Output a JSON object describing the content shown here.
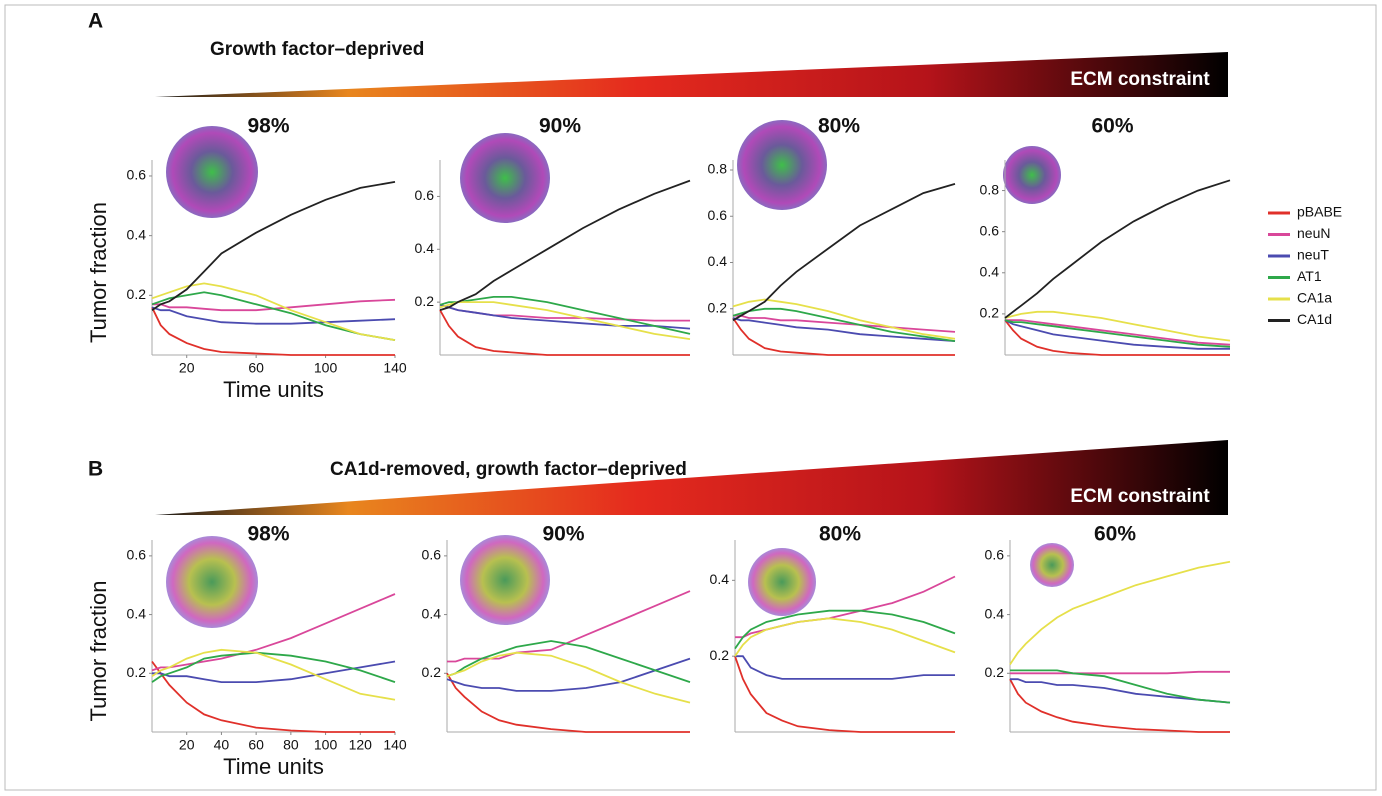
{
  "panels": [
    {
      "label": "A",
      "title": "Growth factor–deprived",
      "gradient_label": "ECM constraint"
    },
    {
      "label": "B",
      "title": "CA1d-removed, growth factor–deprived",
      "gradient_label": "ECM constraint"
    }
  ],
  "chart_data": [
    {
      "type": "line",
      "title": "98%",
      "ylabel": "Tumor fraction",
      "xlabel": "Time units",
      "x": [
        0,
        5,
        10,
        20,
        30,
        40,
        60,
        80,
        100,
        120,
        140
      ],
      "xlim": [
        0,
        140
      ],
      "xticks": [
        20,
        60,
        100,
        140
      ],
      "ylim": [
        0,
        0.62
      ],
      "yticks": [
        0.2,
        0.4,
        0.6
      ],
      "series": [
        {
          "color": "#e0302a",
          "values": [
            0.16,
            0.1,
            0.07,
            0.04,
            0.02,
            0.01,
            0.005,
            0,
            0,
            0,
            0
          ]
        },
        {
          "color": "#d9479a",
          "values": [
            0.17,
            0.17,
            0.16,
            0.16,
            0.155,
            0.15,
            0.15,
            0.16,
            0.17,
            0.18,
            0.185
          ]
        },
        {
          "color": "#4b4bb0",
          "values": [
            0.16,
            0.15,
            0.15,
            0.13,
            0.12,
            0.11,
            0.105,
            0.105,
            0.11,
            0.115,
            0.12
          ]
        },
        {
          "color": "#2ea84a",
          "values": [
            0.17,
            0.18,
            0.19,
            0.2,
            0.21,
            0.2,
            0.17,
            0.14,
            0.1,
            0.07,
            0.05
          ]
        },
        {
          "color": "#e6e04a",
          "values": [
            0.19,
            0.2,
            0.21,
            0.23,
            0.24,
            0.23,
            0.2,
            0.15,
            0.11,
            0.07,
            0.05
          ]
        },
        {
          "color": "#222222",
          "values": [
            0.15,
            0.17,
            0.18,
            0.22,
            0.28,
            0.34,
            0.41,
            0.47,
            0.52,
            0.56,
            0.58
          ]
        }
      ]
    },
    {
      "type": "line",
      "title": "90%",
      "x": [
        0,
        5,
        10,
        20,
        30,
        40,
        60,
        80,
        100,
        120,
        140
      ],
      "xlim": [
        0,
        140
      ],
      "ylim": [
        0,
        0.7
      ],
      "yticks": [
        0.2,
        0.4,
        0.6
      ],
      "series": [
        {
          "color": "#e0302a",
          "values": [
            0.17,
            0.11,
            0.07,
            0.03,
            0.015,
            0.01,
            0,
            0,
            0,
            0,
            0
          ]
        },
        {
          "color": "#d9479a",
          "values": [
            0.19,
            0.18,
            0.17,
            0.16,
            0.15,
            0.15,
            0.14,
            0.14,
            0.135,
            0.13,
            0.13
          ]
        },
        {
          "color": "#4b4bb0",
          "values": [
            0.19,
            0.18,
            0.17,
            0.16,
            0.15,
            0.14,
            0.13,
            0.12,
            0.11,
            0.11,
            0.1
          ]
        },
        {
          "color": "#2ea84a",
          "values": [
            0.19,
            0.2,
            0.2,
            0.21,
            0.22,
            0.22,
            0.2,
            0.17,
            0.14,
            0.11,
            0.08
          ]
        },
        {
          "color": "#e6e04a",
          "values": [
            0.18,
            0.19,
            0.2,
            0.2,
            0.2,
            0.19,
            0.17,
            0.14,
            0.11,
            0.08,
            0.06
          ]
        },
        {
          "color": "#222222",
          "values": [
            0.17,
            0.18,
            0.2,
            0.23,
            0.28,
            0.32,
            0.4,
            0.48,
            0.55,
            0.61,
            0.66
          ]
        }
      ]
    },
    {
      "type": "line",
      "title": "80%",
      "x": [
        0,
        5,
        10,
        20,
        30,
        40,
        60,
        80,
        100,
        120,
        140
      ],
      "xlim": [
        0,
        140
      ],
      "ylim": [
        0,
        0.8
      ],
      "yticks": [
        0.2,
        0.4,
        0.6,
        0.8
      ],
      "series": [
        {
          "color": "#e0302a",
          "values": [
            0.16,
            0.11,
            0.07,
            0.03,
            0.015,
            0.01,
            0,
            0,
            0,
            0,
            0
          ]
        },
        {
          "color": "#d9479a",
          "values": [
            0.17,
            0.17,
            0.16,
            0.16,
            0.15,
            0.15,
            0.14,
            0.13,
            0.12,
            0.11,
            0.1
          ]
        },
        {
          "color": "#4b4bb0",
          "values": [
            0.16,
            0.15,
            0.15,
            0.14,
            0.13,
            0.12,
            0.11,
            0.09,
            0.08,
            0.07,
            0.06
          ]
        },
        {
          "color": "#2ea84a",
          "values": [
            0.17,
            0.18,
            0.19,
            0.2,
            0.2,
            0.19,
            0.16,
            0.13,
            0.1,
            0.08,
            0.06
          ]
        },
        {
          "color": "#e6e04a",
          "values": [
            0.21,
            0.22,
            0.23,
            0.24,
            0.23,
            0.22,
            0.19,
            0.15,
            0.12,
            0.09,
            0.07
          ]
        },
        {
          "color": "#222222",
          "values": [
            0.15,
            0.17,
            0.19,
            0.23,
            0.3,
            0.36,
            0.46,
            0.56,
            0.63,
            0.7,
            0.74
          ]
        }
      ]
    },
    {
      "type": "line",
      "title": "60%",
      "legend": "right",
      "x": [
        0,
        5,
        10,
        20,
        30,
        40,
        60,
        80,
        100,
        120,
        140
      ],
      "xlim": [
        0,
        140
      ],
      "ylim": [
        0,
        0.9
      ],
      "yticks": [
        0.2,
        0.4,
        0.6,
        0.8
      ],
      "series": [
        {
          "name": "pBABE",
          "color": "#e0302a",
          "values": [
            0.17,
            0.12,
            0.08,
            0.04,
            0.02,
            0.01,
            0,
            0,
            0,
            0,
            0
          ]
        },
        {
          "name": "neuN",
          "color": "#d9479a",
          "values": [
            0.17,
            0.17,
            0.17,
            0.16,
            0.15,
            0.14,
            0.12,
            0.1,
            0.08,
            0.06,
            0.05
          ]
        },
        {
          "name": "neuT",
          "color": "#4b4bb0",
          "values": [
            0.17,
            0.15,
            0.14,
            0.12,
            0.1,
            0.09,
            0.07,
            0.05,
            0.04,
            0.03,
            0.03
          ]
        },
        {
          "name": "AT1",
          "color": "#2ea84a",
          "values": [
            0.17,
            0.16,
            0.16,
            0.15,
            0.14,
            0.13,
            0.11,
            0.09,
            0.07,
            0.05,
            0.04
          ]
        },
        {
          "name": "CA1a",
          "color": "#e6e04a",
          "values": [
            0.18,
            0.19,
            0.2,
            0.21,
            0.21,
            0.2,
            0.18,
            0.15,
            0.12,
            0.09,
            0.07
          ]
        },
        {
          "name": "CA1d",
          "color": "#222222",
          "values": [
            0.18,
            0.21,
            0.24,
            0.3,
            0.37,
            0.43,
            0.55,
            0.65,
            0.73,
            0.8,
            0.85
          ]
        }
      ]
    },
    {
      "type": "line",
      "title": "98%",
      "ylabel": "Tumor fraction",
      "xlabel": "Time units",
      "x": [
        0,
        5,
        10,
        20,
        30,
        40,
        60,
        80,
        100,
        120,
        140
      ],
      "xlim": [
        0,
        140
      ],
      "xticks": [
        20,
        40,
        60,
        80,
        100,
        120,
        140
      ],
      "ylim": [
        0,
        0.62
      ],
      "yticks": [
        0.2,
        0.4,
        0.6
      ],
      "series": [
        {
          "color": "#e0302a",
          "values": [
            0.24,
            0.2,
            0.16,
            0.1,
            0.06,
            0.04,
            0.015,
            0.005,
            0,
            0,
            0
          ]
        },
        {
          "color": "#d9479a",
          "values": [
            0.21,
            0.22,
            0.22,
            0.23,
            0.24,
            0.25,
            0.28,
            0.32,
            0.37,
            0.42,
            0.47
          ]
        },
        {
          "color": "#4b4bb0",
          "values": [
            0.2,
            0.2,
            0.19,
            0.19,
            0.18,
            0.17,
            0.17,
            0.18,
            0.2,
            0.22,
            0.24
          ]
        },
        {
          "color": "#2ea84a",
          "values": [
            0.17,
            0.19,
            0.2,
            0.22,
            0.25,
            0.26,
            0.27,
            0.26,
            0.24,
            0.21,
            0.17
          ]
        },
        {
          "color": "#e6e04a",
          "values": [
            0.19,
            0.21,
            0.22,
            0.25,
            0.27,
            0.28,
            0.27,
            0.23,
            0.18,
            0.13,
            0.11
          ]
        }
      ]
    },
    {
      "type": "line",
      "title": "90%",
      "x": [
        0,
        5,
        10,
        20,
        30,
        40,
        60,
        80,
        100,
        120,
        140
      ],
      "xlim": [
        0,
        140
      ],
      "ylim": [
        0,
        0.62
      ],
      "yticks": [
        0.2,
        0.4,
        0.6
      ],
      "series": [
        {
          "color": "#e0302a",
          "values": [
            0.2,
            0.15,
            0.12,
            0.07,
            0.04,
            0.025,
            0.01,
            0,
            0,
            0,
            0
          ]
        },
        {
          "color": "#d9479a",
          "values": [
            0.24,
            0.24,
            0.25,
            0.25,
            0.25,
            0.27,
            0.28,
            0.33,
            0.38,
            0.43,
            0.48
          ]
        },
        {
          "color": "#4b4bb0",
          "values": [
            0.18,
            0.17,
            0.16,
            0.15,
            0.15,
            0.14,
            0.14,
            0.15,
            0.17,
            0.21,
            0.25
          ]
        },
        {
          "color": "#2ea84a",
          "values": [
            0.19,
            0.2,
            0.22,
            0.25,
            0.27,
            0.29,
            0.31,
            0.29,
            0.25,
            0.21,
            0.17
          ]
        },
        {
          "color": "#e6e04a",
          "values": [
            0.19,
            0.2,
            0.21,
            0.24,
            0.26,
            0.27,
            0.26,
            0.22,
            0.17,
            0.13,
            0.1
          ]
        }
      ]
    },
    {
      "type": "line",
      "title": "80%",
      "x": [
        0,
        5,
        10,
        20,
        30,
        40,
        60,
        80,
        100,
        120,
        140
      ],
      "xlim": [
        0,
        140
      ],
      "ylim": [
        0,
        0.48
      ],
      "yticks": [
        0.2,
        0.4
      ],
      "series": [
        {
          "color": "#e0302a",
          "values": [
            0.2,
            0.14,
            0.1,
            0.05,
            0.03,
            0.015,
            0.005,
            0,
            0,
            0,
            0
          ]
        },
        {
          "color": "#d9479a",
          "values": [
            0.25,
            0.25,
            0.26,
            0.27,
            0.28,
            0.29,
            0.3,
            0.32,
            0.34,
            0.37,
            0.41
          ]
        },
        {
          "color": "#4b4bb0",
          "values": [
            0.2,
            0.2,
            0.17,
            0.15,
            0.14,
            0.14,
            0.14,
            0.14,
            0.14,
            0.15,
            0.15
          ]
        },
        {
          "color": "#2ea84a",
          "values": [
            0.22,
            0.25,
            0.27,
            0.29,
            0.3,
            0.31,
            0.32,
            0.32,
            0.31,
            0.29,
            0.26
          ]
        },
        {
          "color": "#e6e04a",
          "values": [
            0.2,
            0.23,
            0.25,
            0.27,
            0.28,
            0.29,
            0.3,
            0.29,
            0.27,
            0.24,
            0.21
          ]
        }
      ]
    },
    {
      "type": "line",
      "title": "60%",
      "x": [
        0,
        5,
        10,
        20,
        30,
        40,
        60,
        80,
        100,
        120,
        140
      ],
      "xlim": [
        0,
        140
      ],
      "ylim": [
        0,
        0.62
      ],
      "yticks": [
        0.2,
        0.4,
        0.6
      ],
      "series": [
        {
          "color": "#e0302a",
          "values": [
            0.18,
            0.13,
            0.1,
            0.07,
            0.05,
            0.035,
            0.02,
            0.01,
            0.005,
            0,
            0
          ]
        },
        {
          "color": "#d9479a",
          "values": [
            0.2,
            0.2,
            0.2,
            0.2,
            0.2,
            0.2,
            0.2,
            0.2,
            0.2,
            0.205,
            0.205
          ]
        },
        {
          "color": "#4b4bb0",
          "values": [
            0.18,
            0.18,
            0.17,
            0.17,
            0.16,
            0.16,
            0.15,
            0.13,
            0.12,
            0.11,
            0.1
          ]
        },
        {
          "color": "#2ea84a",
          "values": [
            0.21,
            0.21,
            0.21,
            0.21,
            0.21,
            0.2,
            0.19,
            0.16,
            0.13,
            0.11,
            0.1
          ]
        },
        {
          "color": "#e6e04a",
          "values": [
            0.23,
            0.27,
            0.3,
            0.35,
            0.39,
            0.42,
            0.46,
            0.5,
            0.53,
            0.56,
            0.58
          ]
        }
      ]
    }
  ]
}
